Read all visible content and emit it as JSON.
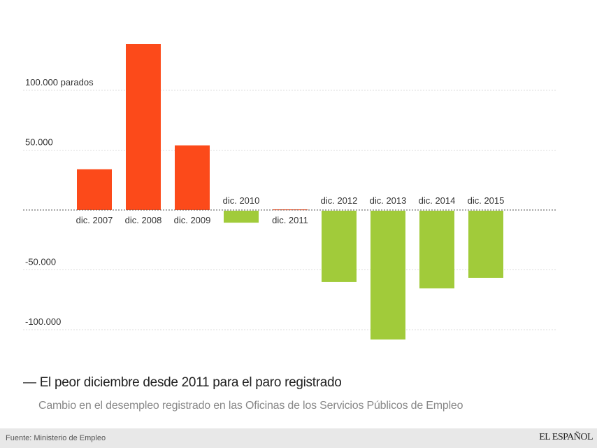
{
  "chart_data": {
    "type": "bar",
    "title": "El peor diciembre desde 2011 para el paro registrado",
    "title_prefix": "—",
    "subtitle": "Cambio en el desempleo registrado en las Oficinas de los Servicios Públicos de Empleo",
    "xlabel": "",
    "ylabel": "parados",
    "categories": [
      "dic. 2007",
      "dic. 2008",
      "dic. 2009",
      "dic. 2010",
      "dic. 2011",
      "dic. 2012",
      "dic. 2013",
      "dic. 2014",
      "dic. 2015"
    ],
    "values": [
      34000,
      138600,
      54000,
      -10000,
      500,
      -59600,
      -107600,
      -64900,
      -56100
    ],
    "ylim": [
      -115000,
      140000
    ],
    "yticks": [
      {
        "value": 100000,
        "label": "100.000 parados"
      },
      {
        "value": 50000,
        "label": "50.000"
      },
      {
        "value": -50000,
        "label": "-50.000"
      },
      {
        "value": -100000,
        "label": "-100.000"
      }
    ],
    "grid": true,
    "colors": {
      "positive": "#fc4a1a",
      "negative": "#a1cb3a",
      "grid": "#dddddd",
      "zero": "#555555"
    }
  },
  "footer": {
    "source": "Fuente: Ministerio de Empleo",
    "brand": "EL ESPAÑOL"
  }
}
